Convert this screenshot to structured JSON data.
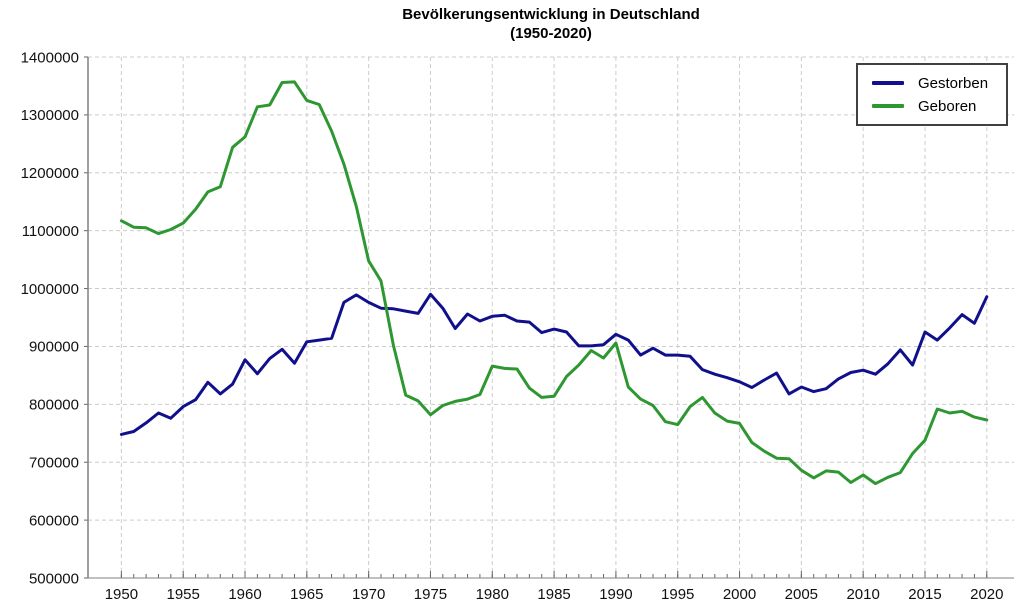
{
  "chart_data": {
    "type": "line",
    "title": "Bevölkerungsentwicklung in Deutschland",
    "subtitle": "(1950-2020)",
    "xlabel": "",
    "ylabel": "",
    "xlim": [
      1947.3,
      2022.2
    ],
    "ylim": [
      500000,
      1400000
    ],
    "xticks": [
      1950,
      1955,
      1960,
      1965,
      1970,
      1975,
      1980,
      1985,
      1990,
      1995,
      2000,
      2005,
      2010,
      2015,
      2020
    ],
    "yticks": [
      500000,
      600000,
      700000,
      800000,
      900000,
      1000000,
      1100000,
      1200000,
      1300000,
      1400000
    ],
    "grid": true,
    "legend_position": "top-right",
    "grid_color": "#cccccc",
    "axis_color": "#808080",
    "tick_color": "#666666",
    "x": [
      1950,
      1951,
      1952,
      1953,
      1954,
      1955,
      1956,
      1957,
      1958,
      1959,
      1960,
      1961,
      1962,
      1963,
      1964,
      1965,
      1966,
      1967,
      1968,
      1969,
      1970,
      1971,
      1972,
      1973,
      1974,
      1975,
      1976,
      1977,
      1978,
      1979,
      1980,
      1981,
      1982,
      1983,
      1984,
      1985,
      1986,
      1987,
      1988,
      1989,
      1990,
      1991,
      1992,
      1993,
      1994,
      1995,
      1996,
      1997,
      1998,
      1999,
      2000,
      2001,
      2002,
      2003,
      2004,
      2005,
      2006,
      2007,
      2008,
      2009,
      2010,
      2011,
      2012,
      2013,
      2014,
      2015,
      2016,
      2017,
      2018,
      2019,
      2020
    ],
    "series": [
      {
        "name": "Gestorben",
        "color": "#10108C",
        "values": [
          748000,
          753000,
          768000,
          785000,
          776000,
          796000,
          808000,
          838000,
          818000,
          835000,
          877000,
          853000,
          879000,
          895000,
          871000,
          908000,
          911000,
          914000,
          976000,
          989000,
          976000,
          966000,
          965000,
          961000,
          957000,
          990000,
          966000,
          931000,
          956000,
          944000,
          952000,
          954000,
          944000,
          942000,
          924000,
          930000,
          925000,
          901000,
          901000,
          903000,
          921000,
          911000,
          885000,
          897000,
          885000,
          885000,
          883000,
          860000,
          852000,
          846000,
          839000,
          829000,
          842000,
          854000,
          818000,
          830000,
          822000,
          827000,
          844000,
          855000,
          859000,
          852000,
          870000,
          894000,
          868000,
          925000,
          911000,
          932000,
          955000,
          940000,
          986000
        ]
      },
      {
        "name": "Geboren",
        "color": "#2E9732",
        "values": [
          1117000,
          1106000,
          1105000,
          1095000,
          1102000,
          1113000,
          1137000,
          1167000,
          1176000,
          1244000,
          1262000,
          1314000,
          1317000,
          1356000,
          1357000,
          1325000,
          1318000,
          1272000,
          1215000,
          1142000,
          1048000,
          1013000,
          902000,
          816000,
          806000,
          782000,
          798000,
          805000,
          809000,
          817000,
          866000,
          862000,
          861000,
          828000,
          812000,
          814000,
          848000,
          868000,
          893000,
          880000,
          906000,
          830000,
          809000,
          798000,
          770000,
          765000,
          796000,
          812000,
          785000,
          771000,
          767000,
          734000,
          719000,
          707000,
          706000,
          686000,
          673000,
          685000,
          683000,
          665000,
          678000,
          663000,
          674000,
          682000,
          715000,
          738000,
          792000,
          785000,
          788000,
          778000,
          773000
        ]
      }
    ]
  }
}
